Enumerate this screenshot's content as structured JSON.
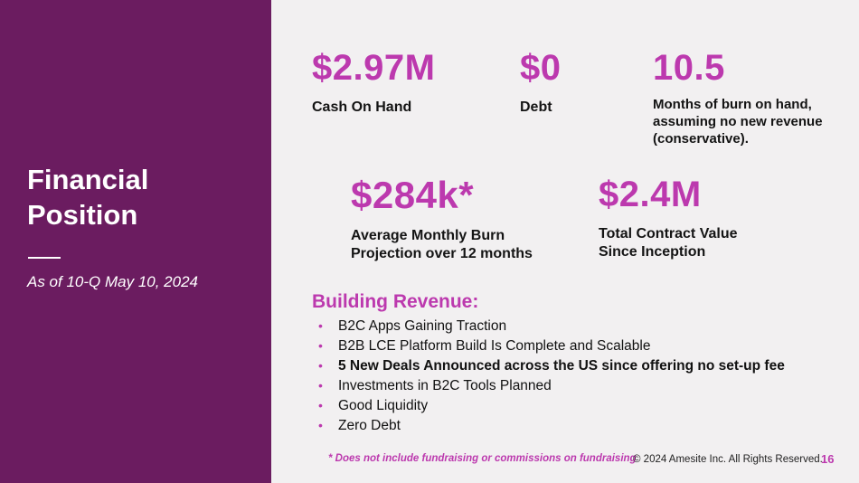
{
  "colors": {
    "accent": "#BC39AE",
    "sidebar_bg": "#6B1C60",
    "content_bg": "#F2F0F1"
  },
  "sidebar": {
    "title": "Financial Position",
    "subtitle": "As of 10-Q May 10, 2024"
  },
  "stats": [
    {
      "value": "$2.97M",
      "label": "Cash On Hand"
    },
    {
      "value": "$0",
      "label": "Debt"
    },
    {
      "value": "10.5",
      "label": "Months of burn on hand, assuming no new revenue (conservative)."
    },
    {
      "value": "$284k*",
      "label": "Average Monthly Burn Projection over 12 months"
    },
    {
      "value": "$2.4M",
      "label": "Total Contract Value Since Inception"
    }
  ],
  "revenue": {
    "heading": "Building Revenue:",
    "bullet_glyph": "•",
    "items": [
      {
        "text": "B2C Apps Gaining Traction",
        "bold": false
      },
      {
        "text": "B2B LCE Platform Build Is Complete and Scalable",
        "bold": false
      },
      {
        "text": "5 New Deals Announced across the US since offering no set-up fee",
        "bold": true
      },
      {
        "text": "Investments in B2C Tools Planned",
        "bold": false
      },
      {
        "text": "Good Liquidity",
        "bold": false
      },
      {
        "text": "Zero Debt",
        "bold": false
      }
    ]
  },
  "footer": {
    "footnote": "* Does not include fundraising or commissions on fundraising",
    "copyright": "© 2024 Amesite Inc. All Rights Reserved.",
    "page_number": "16"
  }
}
